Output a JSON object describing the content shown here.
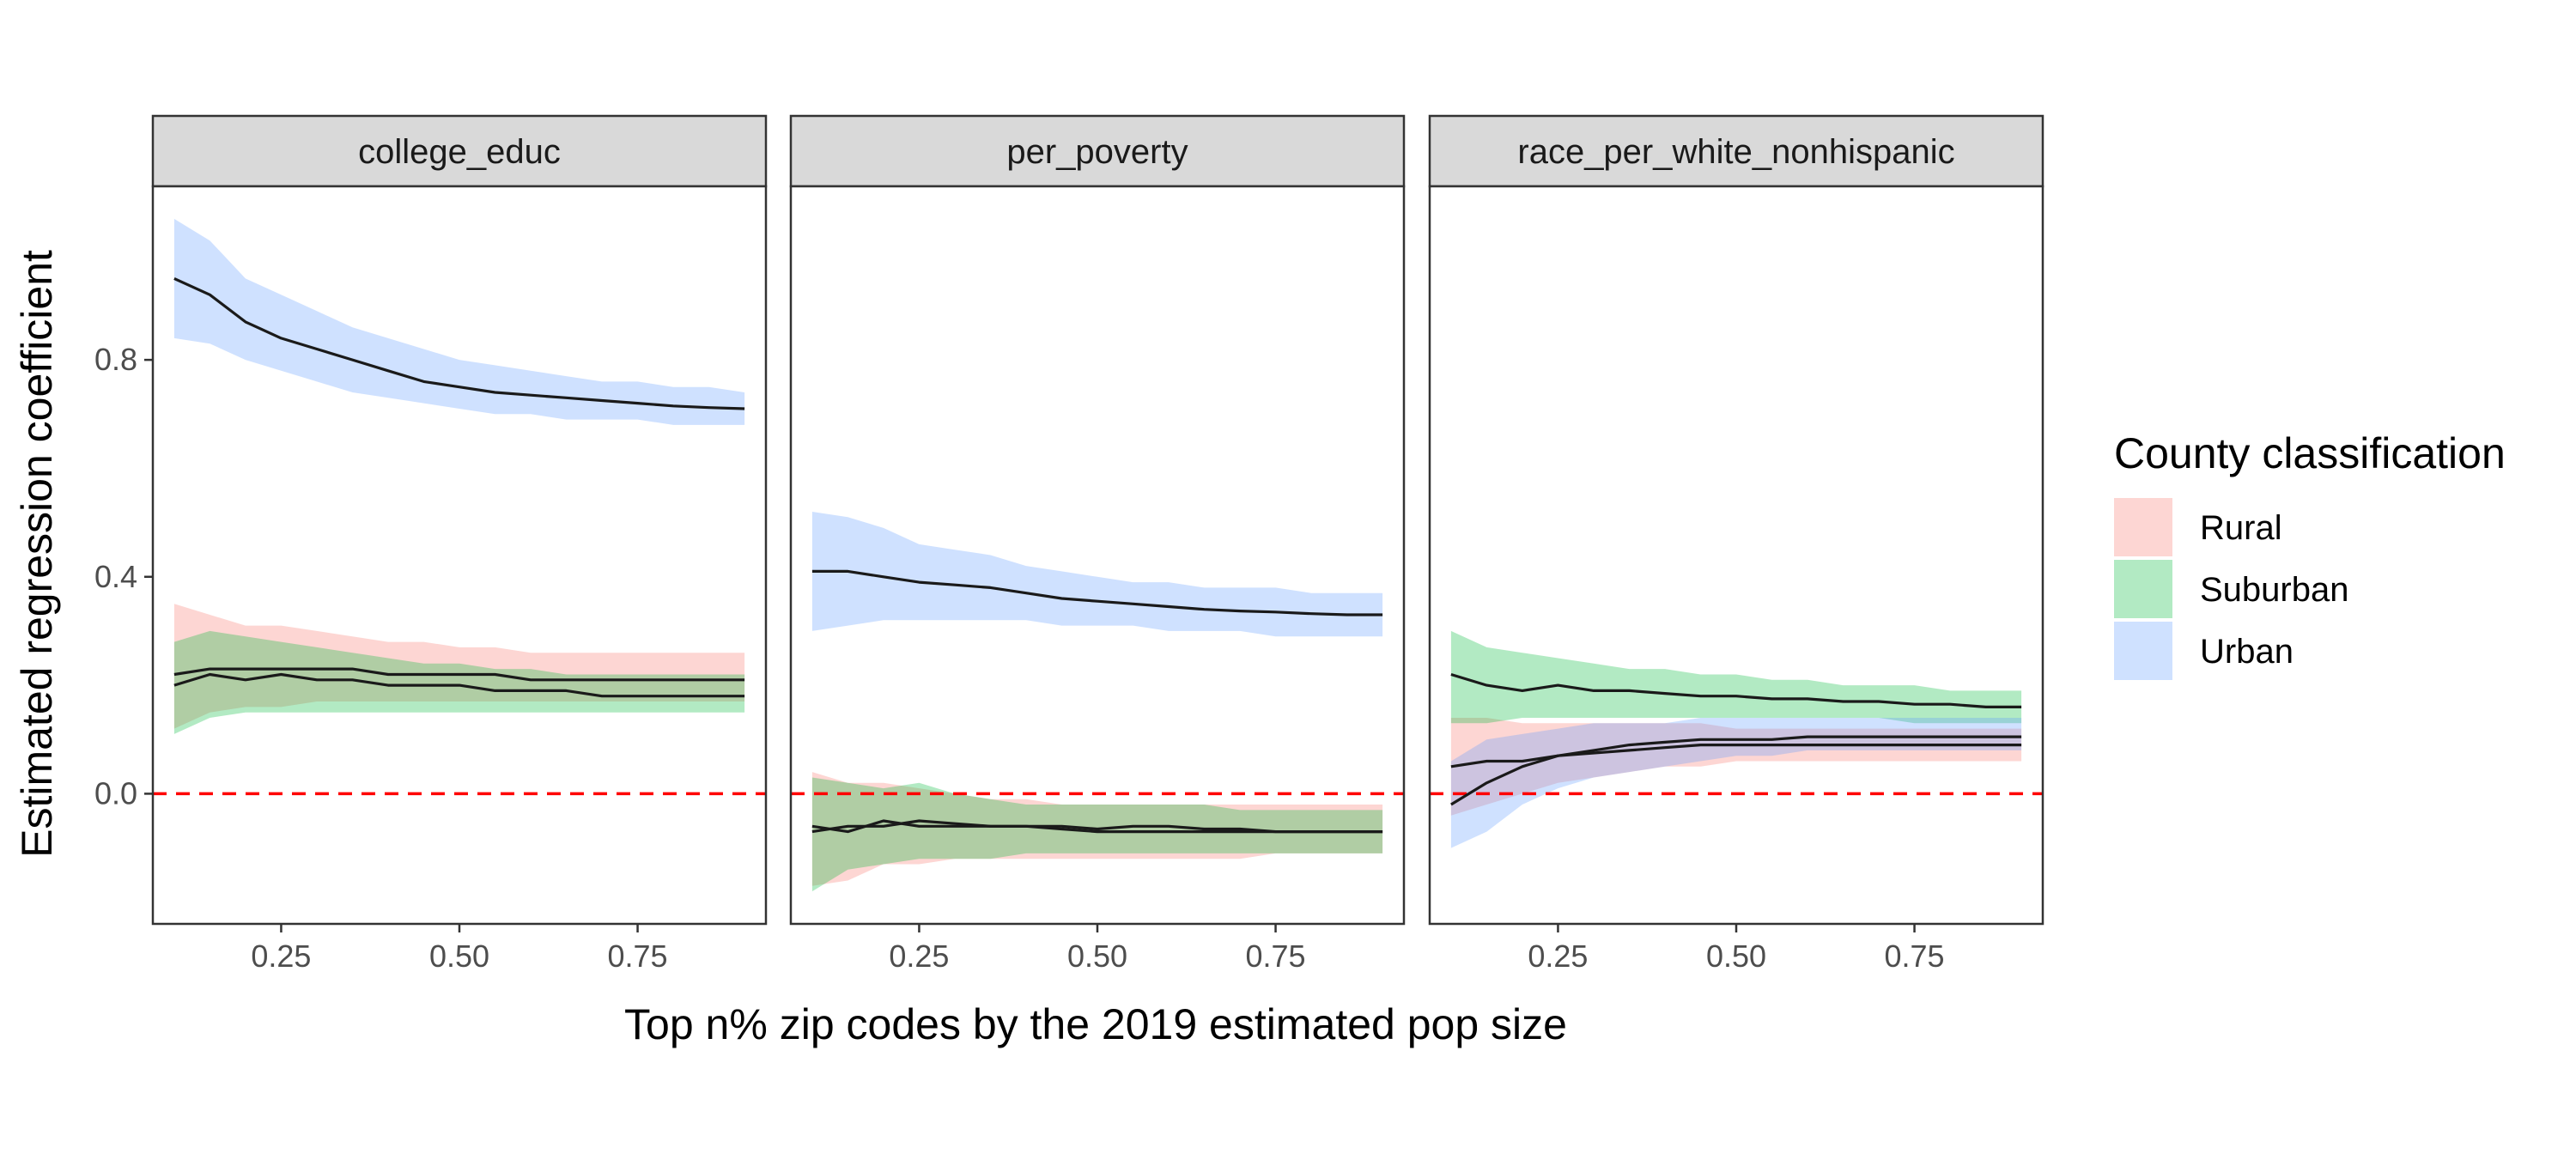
{
  "chart_data": {
    "type": "line",
    "subtype": "faceted line with confidence ribbons",
    "xlabel": "Top n% zip codes by the 2019 estimated pop size",
    "ylabel": "Estimated regression coefficient",
    "xlim": [
      0.07,
      0.93
    ],
    "ylim": [
      -0.24,
      1.12
    ],
    "x_ticks": [
      0.25,
      0.5,
      0.75
    ],
    "x_tick_labels": [
      "0.25",
      "0.50",
      "0.75"
    ],
    "y_ticks": [
      0.0,
      0.4,
      0.8
    ],
    "y_tick_labels": [
      "0.0",
      "0.4",
      "0.8"
    ],
    "reference_line": {
      "y": 0,
      "style": "dashed",
      "color": "#ff0000"
    },
    "grid": false,
    "legend": {
      "title": "County classification",
      "placement": "right",
      "entries": [
        {
          "name": "Rural",
          "color": "#f8766d"
        },
        {
          "name": "Suburban",
          "color": "#00ba38"
        },
        {
          "name": "Urban",
          "color": "#619cff"
        }
      ]
    },
    "ribbon_opacity": 0.3,
    "line_color": "#1a1a1a",
    "x": [
      0.1,
      0.15,
      0.2,
      0.25,
      0.3,
      0.35,
      0.4,
      0.45,
      0.5,
      0.55,
      0.6,
      0.65,
      0.7,
      0.75,
      0.8,
      0.85,
      0.9
    ],
    "facets": [
      {
        "name": "college_educ",
        "series": [
          {
            "name": "Rural",
            "values": [
              0.22,
              0.23,
              0.23,
              0.23,
              0.23,
              0.23,
              0.22,
              0.22,
              0.22,
              0.22,
              0.21,
              0.21,
              0.21,
              0.21,
              0.21,
              0.21,
              0.21
            ],
            "lower": [
              0.12,
              0.15,
              0.16,
              0.16,
              0.17,
              0.17,
              0.17,
              0.17,
              0.17,
              0.17,
              0.17,
              0.17,
              0.17,
              0.17,
              0.17,
              0.17,
              0.17
            ],
            "upper": [
              0.35,
              0.33,
              0.31,
              0.31,
              0.3,
              0.29,
              0.28,
              0.28,
              0.27,
              0.27,
              0.26,
              0.26,
              0.26,
              0.26,
              0.26,
              0.26,
              0.26
            ]
          },
          {
            "name": "Suburban",
            "values": [
              0.2,
              0.22,
              0.21,
              0.22,
              0.21,
              0.21,
              0.2,
              0.2,
              0.2,
              0.19,
              0.19,
              0.19,
              0.18,
              0.18,
              0.18,
              0.18,
              0.18
            ],
            "lower": [
              0.11,
              0.14,
              0.15,
              0.15,
              0.15,
              0.15,
              0.15,
              0.15,
              0.15,
              0.15,
              0.15,
              0.15,
              0.15,
              0.15,
              0.15,
              0.15,
              0.15
            ],
            "upper": [
              0.28,
              0.3,
              0.29,
              0.28,
              0.27,
              0.26,
              0.25,
              0.24,
              0.24,
              0.23,
              0.23,
              0.22,
              0.22,
              0.22,
              0.22,
              0.22,
              0.22
            ]
          },
          {
            "name": "Urban",
            "values": [
              0.95,
              0.92,
              0.87,
              0.84,
              0.82,
              0.8,
              0.78,
              0.76,
              0.75,
              0.74,
              0.735,
              0.73,
              0.725,
              0.72,
              0.715,
              0.712,
              0.71
            ],
            "lower": [
              0.84,
              0.83,
              0.8,
              0.78,
              0.76,
              0.74,
              0.73,
              0.72,
              0.71,
              0.7,
              0.7,
              0.69,
              0.69,
              0.69,
              0.68,
              0.68,
              0.68
            ],
            "upper": [
              1.06,
              1.02,
              0.95,
              0.92,
              0.89,
              0.86,
              0.84,
              0.82,
              0.8,
              0.79,
              0.78,
              0.77,
              0.76,
              0.76,
              0.75,
              0.75,
              0.74
            ]
          }
        ]
      },
      {
        "name": "per_poverty",
        "series": [
          {
            "name": "Rural",
            "values": [
              -0.06,
              -0.07,
              -0.05,
              -0.06,
              -0.06,
              -0.06,
              -0.06,
              -0.065,
              -0.07,
              -0.07,
              -0.07,
              -0.07,
              -0.07,
              -0.07,
              -0.07,
              -0.07,
              -0.07
            ],
            "lower": [
              -0.17,
              -0.16,
              -0.13,
              -0.13,
              -0.12,
              -0.12,
              -0.12,
              -0.12,
              -0.12,
              -0.12,
              -0.12,
              -0.12,
              -0.12,
              -0.11,
              -0.11,
              -0.11,
              -0.11
            ],
            "upper": [
              0.04,
              0.02,
              0.02,
              0.01,
              0.0,
              -0.01,
              -0.01,
              -0.02,
              -0.02,
              -0.02,
              -0.02,
              -0.02,
              -0.02,
              -0.02,
              -0.02,
              -0.02,
              -0.02
            ]
          },
          {
            "name": "Suburban",
            "values": [
              -0.07,
              -0.06,
              -0.06,
              -0.05,
              -0.055,
              -0.06,
              -0.06,
              -0.06,
              -0.065,
              -0.06,
              -0.06,
              -0.065,
              -0.065,
              -0.07,
              -0.07,
              -0.07,
              -0.07
            ],
            "lower": [
              -0.18,
              -0.14,
              -0.13,
              -0.12,
              -0.12,
              -0.12,
              -0.11,
              -0.11,
              -0.11,
              -0.11,
              -0.11,
              -0.11,
              -0.11,
              -0.11,
              -0.11,
              -0.11,
              -0.11
            ],
            "upper": [
              0.03,
              0.02,
              0.01,
              0.02,
              0.0,
              -0.01,
              -0.02,
              -0.02,
              -0.02,
              -0.02,
              -0.02,
              -0.02,
              -0.03,
              -0.03,
              -0.03,
              -0.03,
              -0.03
            ]
          },
          {
            "name": "Urban",
            "values": [
              0.41,
              0.41,
              0.4,
              0.39,
              0.385,
              0.38,
              0.37,
              0.36,
              0.355,
              0.35,
              0.345,
              0.34,
              0.337,
              0.335,
              0.332,
              0.33,
              0.33
            ],
            "lower": [
              0.3,
              0.31,
              0.32,
              0.32,
              0.32,
              0.32,
              0.32,
              0.31,
              0.31,
              0.31,
              0.3,
              0.3,
              0.3,
              0.29,
              0.29,
              0.29,
              0.29
            ],
            "upper": [
              0.52,
              0.51,
              0.49,
              0.46,
              0.45,
              0.44,
              0.42,
              0.41,
              0.4,
              0.39,
              0.39,
              0.38,
              0.38,
              0.38,
              0.37,
              0.37,
              0.37
            ]
          }
        ]
      },
      {
        "name": "race_per_white_nonhispanic",
        "series": [
          {
            "name": "Rural",
            "values": [
              0.05,
              0.06,
              0.06,
              0.07,
              0.075,
              0.08,
              0.085,
              0.09,
              0.09,
              0.09,
              0.09,
              0.09,
              0.09,
              0.09,
              0.09,
              0.09,
              0.09
            ],
            "lower": [
              -0.04,
              -0.02,
              0.0,
              0.02,
              0.03,
              0.04,
              0.05,
              0.05,
              0.06,
              0.06,
              0.06,
              0.06,
              0.06,
              0.06,
              0.06,
              0.06,
              0.06
            ],
            "upper": [
              0.14,
              0.14,
              0.13,
              0.13,
              0.13,
              0.13,
              0.13,
              0.13,
              0.12,
              0.12,
              0.12,
              0.12,
              0.12,
              0.12,
              0.12,
              0.12,
              0.12
            ]
          },
          {
            "name": "Suburban",
            "values": [
              0.22,
              0.2,
              0.19,
              0.2,
              0.19,
              0.19,
              0.185,
              0.18,
              0.18,
              0.175,
              0.175,
              0.17,
              0.17,
              0.165,
              0.165,
              0.16,
              0.16
            ],
            "lower": [
              0.13,
              0.13,
              0.14,
              0.14,
              0.14,
              0.14,
              0.14,
              0.14,
              0.14,
              0.14,
              0.14,
              0.14,
              0.14,
              0.13,
              0.13,
              0.13,
              0.13
            ],
            "upper": [
              0.3,
              0.27,
              0.26,
              0.25,
              0.24,
              0.23,
              0.23,
              0.22,
              0.22,
              0.21,
              0.21,
              0.2,
              0.2,
              0.2,
              0.19,
              0.19,
              0.19
            ]
          },
          {
            "name": "Urban",
            "values": [
              -0.02,
              0.02,
              0.05,
              0.07,
              0.08,
              0.09,
              0.095,
              0.1,
              0.1,
              0.1,
              0.105,
              0.105,
              0.105,
              0.105,
              0.105,
              0.105,
              0.105
            ],
            "lower": [
              -0.1,
              -0.07,
              -0.02,
              0.01,
              0.03,
              0.04,
              0.05,
              0.06,
              0.07,
              0.07,
              0.08,
              0.08,
              0.08,
              0.08,
              0.08,
              0.08,
              0.08
            ],
            "upper": [
              0.06,
              0.1,
              0.11,
              0.12,
              0.13,
              0.13,
              0.13,
              0.14,
              0.14,
              0.14,
              0.14,
              0.14,
              0.14,
              0.14,
              0.14,
              0.14,
              0.14
            ]
          }
        ]
      }
    ]
  }
}
